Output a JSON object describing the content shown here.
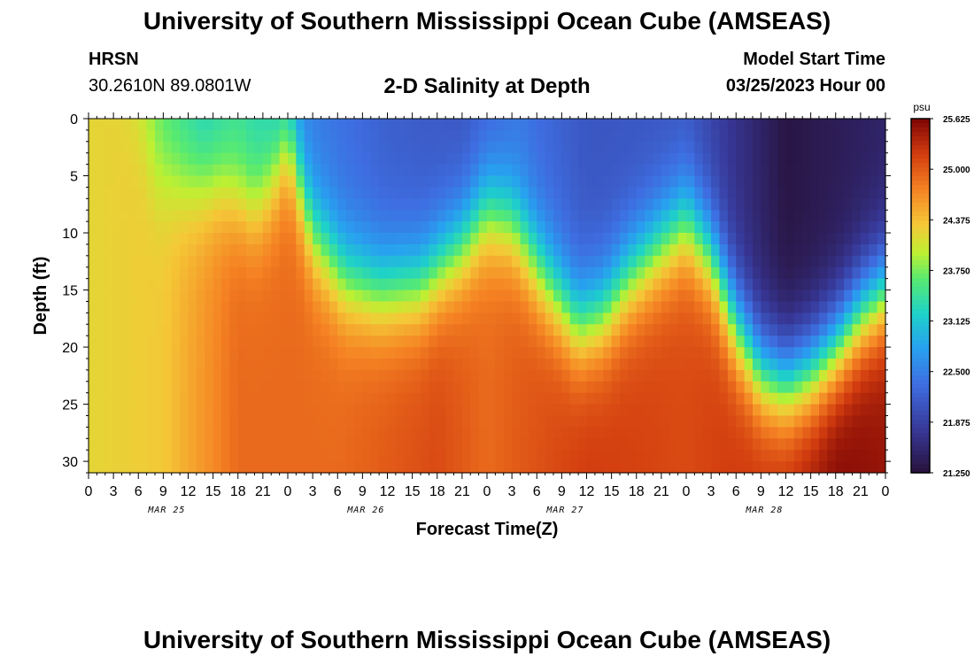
{
  "header": {
    "title": "University of Southern Mississippi Ocean Cube (AMSEAS)",
    "station": "HRSN",
    "coordinates": "30.2610N  89.0801W",
    "subtitle": "2-D Salinity at Depth",
    "model_start_label": "Model Start Time",
    "model_start_value": "03/25/2023 Hour 00"
  },
  "footer": {
    "title": "University of Southern Mississippi Ocean Cube (AMSEAS)"
  },
  "chart_data": {
    "type": "heatmap",
    "title": "2-D Salinity at Depth",
    "xlabel": "Forecast Time(Z)",
    "ylabel": "Depth (ft)",
    "x_ticks": [
      "0",
      "3",
      "6",
      "9",
      "12",
      "15",
      "18",
      "21",
      "0",
      "3",
      "6",
      "9",
      "12",
      "15",
      "18",
      "21",
      "0",
      "3",
      "6",
      "9",
      "12",
      "15",
      "18",
      "21",
      "0",
      "3",
      "6",
      "9",
      "12",
      "15",
      "18",
      "21",
      "0"
    ],
    "x_hours_range": [
      0,
      96
    ],
    "day_labels": [
      {
        "label": "MAR 25",
        "hour": 9
      },
      {
        "label": "MAR 26",
        "hour": 33
      },
      {
        "label": "MAR 27",
        "hour": 57
      },
      {
        "label": "MAR 28",
        "hour": 81
      }
    ],
    "ylim": [
      0,
      31
    ],
    "y_ticks": [
      0,
      5,
      10,
      15,
      20,
      25,
      30
    ],
    "colorbar": {
      "unit": "psu",
      "range": [
        21.25,
        25.625
      ],
      "ticks": [
        "25.625",
        "25.000",
        "24.375",
        "23.750",
        "23.125",
        "22.500",
        "21.875",
        "21.250"
      ]
    },
    "interface_depth_ft": [
      {
        "hour": 0,
        "depth": -10
      },
      {
        "hour": 4,
        "depth": -3
      },
      {
        "hour": 8,
        "depth": 5
      },
      {
        "hour": 12,
        "depth": 6
      },
      {
        "hour": 16,
        "depth": 6
      },
      {
        "hour": 20,
        "depth": 8
      },
      {
        "hour": 22,
        "depth": 6
      },
      {
        "hour": 24,
        "depth": 2
      },
      {
        "hour": 27,
        "depth": 10
      },
      {
        "hour": 31,
        "depth": 14
      },
      {
        "hour": 35,
        "depth": 15
      },
      {
        "hour": 40,
        "depth": 14.5
      },
      {
        "hour": 45,
        "depth": 11
      },
      {
        "hour": 48,
        "depth": 8
      },
      {
        "hour": 51,
        "depth": 9
      },
      {
        "hour": 55,
        "depth": 14
      },
      {
        "hour": 59,
        "depth": 18
      },
      {
        "hour": 62,
        "depth": 17
      },
      {
        "hour": 65,
        "depth": 14
      },
      {
        "hour": 69,
        "depth": 11
      },
      {
        "hour": 72,
        "depth": 9
      },
      {
        "hour": 75,
        "depth": 12
      },
      {
        "hour": 78,
        "depth": 18
      },
      {
        "hour": 81,
        "depth": 22
      },
      {
        "hour": 84,
        "depth": 23
      },
      {
        "hour": 87,
        "depth": 22
      },
      {
        "hour": 90,
        "depth": 20
      },
      {
        "hour": 93,
        "depth": 17
      },
      {
        "hour": 96,
        "depth": 15
      }
    ],
    "surface_salinity_psu": [
      {
        "hour": 0,
        "value": 24.2
      },
      {
        "hour": 6,
        "value": 24.0
      },
      {
        "hour": 9,
        "value": 23.6
      },
      {
        "hour": 14,
        "value": 23.2
      },
      {
        "hour": 18,
        "value": 23.4
      },
      {
        "hour": 22,
        "value": 23.2
      },
      {
        "hour": 26,
        "value": 22.5
      },
      {
        "hour": 36,
        "value": 22.2
      },
      {
        "hour": 45,
        "value": 22.1
      },
      {
        "hour": 52,
        "value": 22.4
      },
      {
        "hour": 60,
        "value": 22.1
      },
      {
        "hour": 72,
        "value": 22.1
      },
      {
        "hour": 78,
        "value": 21.7
      },
      {
        "hour": 84,
        "value": 21.3
      },
      {
        "hour": 96,
        "value": 21.5
      }
    ],
    "bottom_salinity_psu": [
      {
        "hour": 0,
        "value": 24.2
      },
      {
        "hour": 9,
        "value": 24.3
      },
      {
        "hour": 18,
        "value": 24.9
      },
      {
        "hour": 30,
        "value": 24.9
      },
      {
        "hour": 42,
        "value": 25.1
      },
      {
        "hour": 48,
        "value": 24.9
      },
      {
        "hour": 60,
        "value": 25.2
      },
      {
        "hour": 72,
        "value": 25.1
      },
      {
        "hour": 84,
        "value": 25.3
      },
      {
        "hour": 90,
        "value": 25.6
      },
      {
        "hour": 96,
        "value": 25.5
      }
    ]
  }
}
